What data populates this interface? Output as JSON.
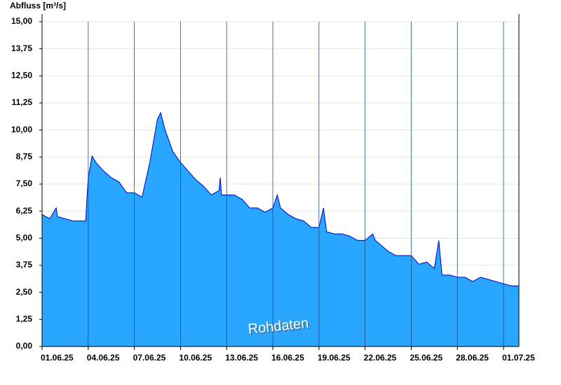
{
  "chart_data": {
    "type": "area",
    "y_label": "Abfluss [m³/s]",
    "annotation": "Rohdaten",
    "color": "#29a6ff",
    "line_color": "#0000cc",
    "xlim": [
      "2025-06-01T00:00",
      "2025-07-02T00:00"
    ],
    "xticks": [
      {
        "value": "2025-06-01T00:00",
        "label": "01.06.25"
      },
      {
        "value": "2025-06-04T00:00",
        "label": "04.06.25"
      },
      {
        "value": "2025-06-07T00:00",
        "label": "07.06.25"
      },
      {
        "value": "2025-06-10T00:00",
        "label": "10.06.25"
      },
      {
        "value": "2025-06-13T00:00",
        "label": "13.06.25"
      },
      {
        "value": "2025-06-16T00:00",
        "label": "16.06.25"
      },
      {
        "value": "2025-06-19T00:00",
        "label": "19.06.25"
      },
      {
        "value": "2025-06-22T00:00",
        "label": "22.06.25"
      },
      {
        "value": "2025-06-25T00:00",
        "label": "25.06.25"
      },
      {
        "value": "2025-06-28T00:00",
        "label": "28.06.25"
      },
      {
        "value": "2025-07-01T00:00",
        "label": "01.07.25"
      }
    ],
    "ylim": [
      0,
      15
    ],
    "yticks": [
      {
        "value": 0,
        "label": "0,00"
      },
      {
        "value": 1.25,
        "label": "1,25"
      },
      {
        "value": 2.5,
        "label": "2,50"
      },
      {
        "value": 3.75,
        "label": "3,75"
      },
      {
        "value": 5,
        "label": "5,00"
      },
      {
        "value": 6.25,
        "label": "6,25"
      },
      {
        "value": 7.5,
        "label": "7,50"
      },
      {
        "value": 8.75,
        "label": "8,75"
      },
      {
        "value": 10,
        "label": "10,00"
      },
      {
        "value": 11.25,
        "label": "11,25"
      },
      {
        "value": 12.5,
        "label": "12,50"
      },
      {
        "value": 13.75,
        "label": "13,75"
      },
      {
        "value": 15,
        "label": "15,00"
      }
    ],
    "grid": true,
    "x": [
      "2025-06-01T00:00",
      "2025-06-01T12:00",
      "2025-06-01T22:00",
      "2025-06-02T00:00",
      "2025-06-02T12:00",
      "2025-06-03T00:00",
      "2025-06-03T12:00",
      "2025-06-03T20:00",
      "2025-06-04T00:00",
      "2025-06-04T06:00",
      "2025-06-04T12:00",
      "2025-06-05T00:00",
      "2025-06-05T12:00",
      "2025-06-06T00:00",
      "2025-06-06T12:00",
      "2025-06-07T00:00",
      "2025-06-07T12:00",
      "2025-06-08T00:00",
      "2025-06-08T12:00",
      "2025-06-08T17:00",
      "2025-06-09T00:00",
      "2025-06-09T12:00",
      "2025-06-10T00:00",
      "2025-06-10T12:00",
      "2025-06-11T00:00",
      "2025-06-11T12:00",
      "2025-06-12T00:00",
      "2025-06-12T12:00",
      "2025-06-12T14:00",
      "2025-06-12T16:00",
      "2025-06-13T00:00",
      "2025-06-13T12:00",
      "2025-06-14T00:00",
      "2025-06-14T12:00",
      "2025-06-15T00:00",
      "2025-06-15T12:00",
      "2025-06-16T00:00",
      "2025-06-16T07:00",
      "2025-06-16T12:00",
      "2025-06-17T00:00",
      "2025-06-17T12:00",
      "2025-06-18T00:00",
      "2025-06-18T12:00",
      "2025-06-19T00:00",
      "2025-06-19T07:00",
      "2025-06-19T12:00",
      "2025-06-20T00:00",
      "2025-06-20T12:00",
      "2025-06-21T00:00",
      "2025-06-21T12:00",
      "2025-06-22T00:00",
      "2025-06-22T12:00",
      "2025-06-22T16:00",
      "2025-06-23T00:00",
      "2025-06-23T12:00",
      "2025-06-24T00:00",
      "2025-06-24T12:00",
      "2025-06-25T00:00",
      "2025-06-25T12:00",
      "2025-06-26T00:00",
      "2025-06-26T12:00",
      "2025-06-26T19:00",
      "2025-06-27T00:00",
      "2025-06-27T12:00",
      "2025-06-28T00:00",
      "2025-06-28T12:00",
      "2025-06-29T00:00",
      "2025-06-29T12:00",
      "2025-06-30T00:00",
      "2025-06-30T12:00",
      "2025-07-01T00:00",
      "2025-07-01T12:00",
      "2025-07-02T00:00"
    ],
    "values": [
      6.1,
      5.9,
      6.4,
      6.0,
      5.9,
      5.8,
      5.8,
      5.8,
      7.8,
      8.8,
      8.5,
      8.1,
      7.8,
      7.6,
      7.1,
      7.1,
      6.9,
      8.5,
      10.5,
      10.8,
      10.0,
      9.0,
      8.5,
      8.1,
      7.7,
      7.4,
      7.0,
      7.2,
      7.8,
      7.0,
      7.0,
      7.0,
      6.8,
      6.4,
      6.4,
      6.2,
      6.4,
      7.0,
      6.4,
      6.1,
      5.9,
      5.8,
      5.5,
      5.5,
      6.4,
      5.3,
      5.2,
      5.2,
      5.1,
      4.9,
      4.9,
      5.2,
      4.9,
      4.7,
      4.4,
      4.2,
      4.2,
      4.2,
      3.8,
      3.9,
      3.6,
      4.9,
      3.3,
      3.3,
      3.2,
      3.2,
      3.0,
      3.2,
      3.1,
      3.0,
      2.9,
      2.8,
      2.8
    ]
  }
}
